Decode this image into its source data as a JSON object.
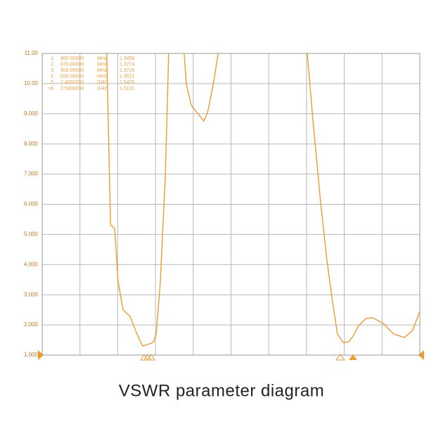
{
  "chart_data": {
    "type": "line",
    "title": "VSWR parameter diagram",
    "color": "#f39a2c",
    "grid": true,
    "xlim": [
      0,
      10
    ],
    "ylim": [
      1,
      11
    ],
    "yticks": [
      {
        "value": 11,
        "label": "11.00"
      },
      {
        "value": 10,
        "label": "10.00"
      },
      {
        "value": 9,
        "label": "9.000"
      },
      {
        "value": 8,
        "label": "8.000"
      },
      {
        "value": 7,
        "label": "7.000"
      },
      {
        "value": 6,
        "label": "6.000"
      },
      {
        "value": 5,
        "label": "5.000"
      },
      {
        "value": 4,
        "label": "4.000"
      },
      {
        "value": 3,
        "label": "3.000"
      },
      {
        "value": 2,
        "label": "2.000"
      },
      {
        "value": 1,
        "label": "1.000"
      }
    ],
    "x": [
      1.71,
      1.81,
      1.92,
      2.01,
      2.14,
      2.33,
      2.51,
      2.66,
      2.79,
      2.94,
      3.02,
      3.13,
      3.26,
      3.35,
      null,
      3.76,
      3.82,
      3.95,
      4.1,
      4.28,
      4.38,
      4.53,
      4.66,
      null,
      7.02,
      7.17,
      7.36,
      7.54,
      7.69,
      7.82,
      7.97,
      8.12,
      8.23,
      8.38,
      8.57,
      8.75,
      9.03,
      9.31,
      9.59,
      9.81,
      10
    ],
    "values": [
      11,
      5.31,
      5.2,
      3.45,
      2.5,
      2.28,
      1.7,
      1.3,
      1.35,
      1.42,
      1.7,
      3.45,
      6.94,
      11,
      null,
      11,
      9.97,
      9.28,
      9.04,
      8.76,
      9.04,
      9.97,
      11,
      null,
      11,
      8.8,
      6.24,
      4.15,
      2.75,
      1.7,
      1.42,
      1.44,
      1.63,
      1.98,
      2.21,
      2.24,
      2.05,
      1.7,
      1.58,
      1.82,
      2.45
    ],
    "markers": [
      {
        "id": "1",
        "frequency": "860.00000",
        "unit": "MHz",
        "value": 1.3456
      },
      {
        "id": "2",
        "frequency": "870.00000",
        "unit": "MHz",
        "value": 1.3274
      },
      {
        "id": "3",
        "frequency": "900.00000",
        "unit": "MHz",
        "value": 1.3726
      },
      {
        "id": "4",
        "frequency": "930.00000",
        "unit": "MHz",
        "value": 1.4512
      },
      {
        "id": "5",
        "frequency": "2.4000000",
        "unit": "GHz",
        "value": 1.5475
      },
      {
        "id": ">6",
        "frequency": "2.5000000",
        "unit": "GHz",
        "value": 1.5115
      }
    ]
  }
}
